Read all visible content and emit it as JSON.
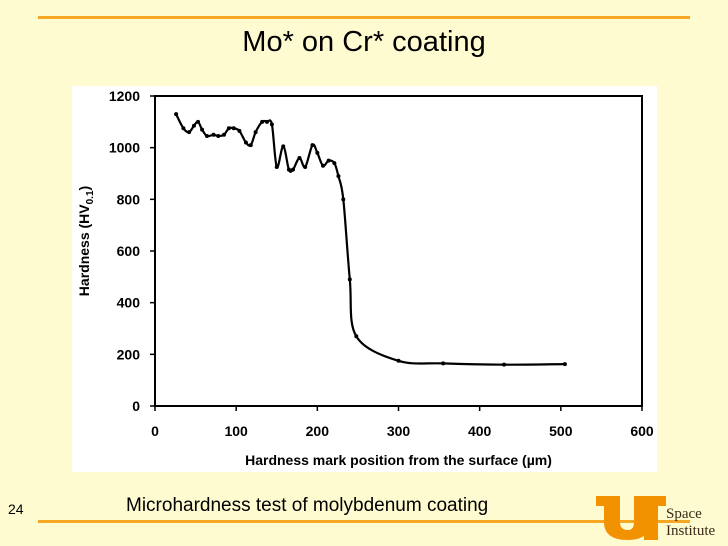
{
  "slide": {
    "title": "Mo* on Cr* coating",
    "caption": "Microhardness test of molybdenum coating",
    "page_number": "24",
    "logo_line1": "Space",
    "logo_line2": "Institute"
  },
  "colors": {
    "background": "#fffbd0",
    "rule": "#f5a623",
    "logo_orange": "#f39200"
  },
  "chart_data": {
    "type": "line",
    "title": "",
    "xlabel": "Hardness mark position from the surface (µm)",
    "ylabel_main": "Hardness (HV",
    "ylabel_sub": "0.1",
    "ylabel_close": ")",
    "xlim": [
      0,
      600
    ],
    "ylim": [
      0,
      1200
    ],
    "xticks": [
      "0",
      "100",
      "200",
      "300",
      "400",
      "500",
      "600"
    ],
    "yticks": [
      "0",
      "200",
      "400",
      "600",
      "800",
      "1000",
      "1200"
    ],
    "grid": false,
    "series": [
      {
        "x": [
          26,
          35,
          42,
          48,
          53,
          58,
          64,
          72,
          78,
          85,
          91,
          97,
          104,
          112,
          118,
          124,
          132,
          138,
          144,
          150,
          158,
          165,
          170,
          178,
          185,
          194,
          200,
          207,
          214,
          221,
          226,
          232,
          240,
          248,
          300,
          355,
          430,
          505
        ],
        "y": [
          1130,
          1075,
          1060,
          1085,
          1100,
          1070,
          1045,
          1050,
          1045,
          1050,
          1075,
          1075,
          1065,
          1020,
          1010,
          1060,
          1100,
          1100,
          1090,
          925,
          1005,
          915,
          915,
          960,
          925,
          1010,
          980,
          930,
          950,
          940,
          890,
          800,
          490,
          270,
          175,
          165,
          160,
          162
        ]
      }
    ]
  }
}
